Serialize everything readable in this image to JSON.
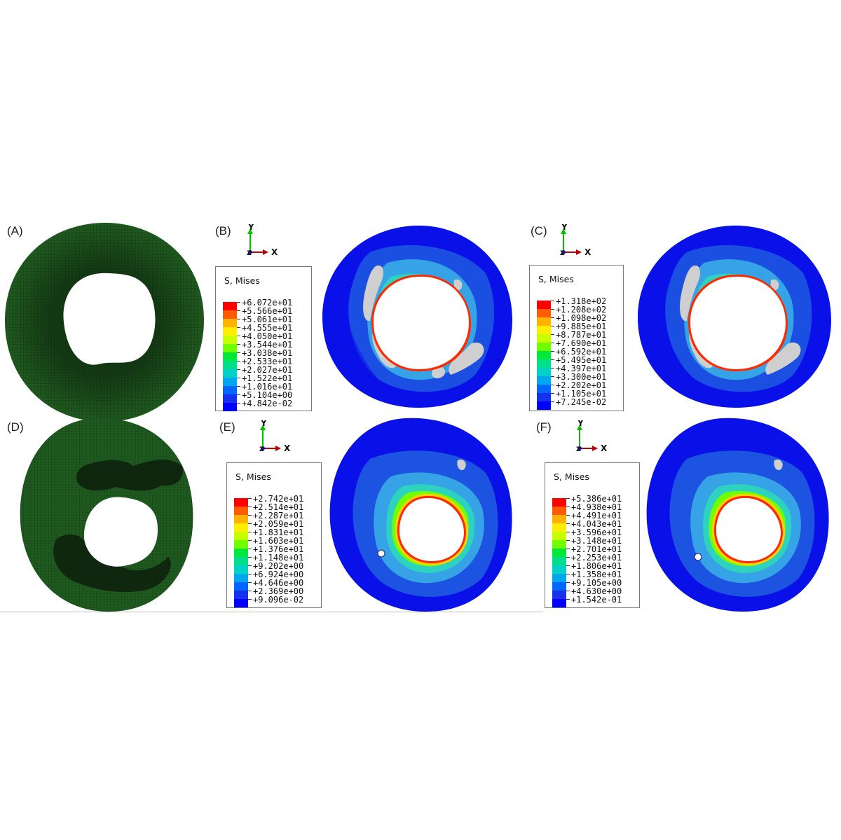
{
  "panels": {
    "A": {
      "label": "(A)"
    },
    "B": {
      "label": "(B)"
    },
    "C": {
      "label": "(C)"
    },
    "D": {
      "label": "(D)"
    },
    "E": {
      "label": "(E)"
    },
    "F": {
      "label": "(F)"
    }
  },
  "axes": {
    "y": "Y",
    "x": "X",
    "z": "Z"
  },
  "legends": {
    "B": {
      "title": "S, Mises",
      "values": [
        "+6.072e+01",
        "+5.566e+01",
        "+5.061e+01",
        "+4.555e+01",
        "+4.050e+01",
        "+3.544e+01",
        "+3.038e+01",
        "+2.533e+01",
        "+2.027e+01",
        "+1.522e+01",
        "+1.016e+01",
        "+5.104e+00",
        "+4.842e-02"
      ]
    },
    "C": {
      "title": "S, Mises",
      "values": [
        "+1.318e+02",
        "+1.208e+02",
        "+1.098e+02",
        "+9.885e+01",
        "+8.787e+01",
        "+7.690e+01",
        "+6.592e+01",
        "+5.495e+01",
        "+4.397e+01",
        "+3.300e+01",
        "+2.202e+01",
        "+1.105e+01",
        "+7.245e-02"
      ]
    },
    "E": {
      "title": "S, Mises",
      "values": [
        "+2.742e+01",
        "+2.514e+01",
        "+2.287e+01",
        "+2.059e+01",
        "+1.831e+01",
        "+1.603e+01",
        "+1.376e+01",
        "+1.148e+01",
        "+9.202e+00",
        "+6.924e+00",
        "+4.646e+00",
        "+2.369e+00",
        "+9.096e-02"
      ]
    },
    "F": {
      "title": "S, Mises",
      "values": [
        "+5.386e+01",
        "+4.938e+01",
        "+4.491e+01",
        "+4.043e+01",
        "+3.596e+01",
        "+3.148e+01",
        "+2.701e+01",
        "+2.253e+01",
        "+1.806e+01",
        "+1.358e+01",
        "+9.105e+00",
        "+4.630e+00",
        "+1.542e-01"
      ]
    }
  },
  "colors": {
    "scale": [
      "#ff0000",
      "#ff5b00",
      "#ffb200",
      "#ffee00",
      "#c8ff00",
      "#6fff00",
      "#00e83a",
      "#00e08a",
      "#00d2c8",
      "#00a6ee",
      "#0066ff",
      "#1530ee",
      "#0000ff"
    ],
    "mesh_green": "#1f5a1f",
    "mesh_dark": "#0f2e0f",
    "grey_void": "#cfcfcf"
  }
}
